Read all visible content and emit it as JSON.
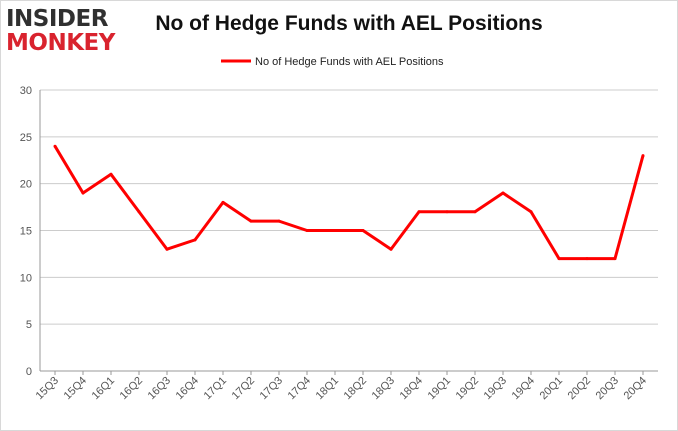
{
  "logo": {
    "line1": "INSIDER",
    "line2": "MONKEY"
  },
  "chart_data": {
    "type": "line",
    "title": "No of Hedge Funds with AEL Positions",
    "xlabel": "",
    "ylabel": "",
    "categories": [
      "15Q3",
      "15Q4",
      "16Q1",
      "16Q2",
      "16Q3",
      "16Q4",
      "17Q1",
      "17Q2",
      "17Q3",
      "17Q4",
      "18Q1",
      "18Q2",
      "18Q3",
      "18Q4",
      "19Q1",
      "19Q2",
      "19Q3",
      "19Q4",
      "20Q1",
      "20Q2",
      "20Q3",
      "20Q4"
    ],
    "series": [
      {
        "name": "No of Hedge Funds with AEL Positions",
        "color": "#ff0000",
        "values": [
          24,
          19,
          21,
          17,
          13,
          14,
          18,
          16,
          16,
          15,
          15,
          15,
          13,
          17,
          17,
          17,
          19,
          17,
          12,
          12,
          12,
          23
        ]
      }
    ],
    "ylim": [
      0,
      30
    ],
    "yticks": [
      0,
      5,
      10,
      15,
      20,
      25,
      30
    ],
    "grid": true,
    "legend": "top-center"
  }
}
